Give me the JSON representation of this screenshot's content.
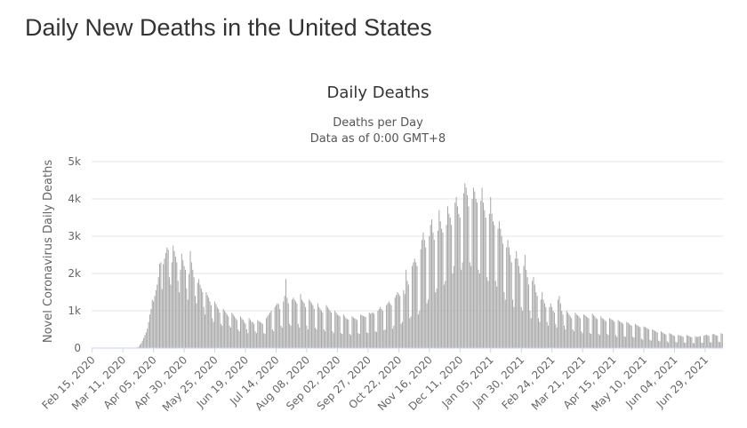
{
  "page": {
    "heading": "Daily New Deaths in the United States"
  },
  "chart_data": {
    "type": "bar",
    "title": "Daily Deaths",
    "subtitle_line1": "Deaths per Day",
    "subtitle_line2": "Data as of 0:00 GMT+8",
    "ylabel": "Novel Coronavirus Daily Deaths",
    "xlabel": "",
    "ylim": [
      0,
      5000
    ],
    "y_ticks": [
      0,
      1000,
      2000,
      3000,
      4000,
      5000
    ],
    "y_tick_labels": [
      "0",
      "1k",
      "2k",
      "3k",
      "4k",
      "5k"
    ],
    "x_tick_labels": [
      "Feb 15, 2020",
      "Mar 11, 2020",
      "Apr 05, 2020",
      "Apr 30, 2020",
      "May 25, 2020",
      "Jun 19, 2020",
      "Jul 14, 2020",
      "Aug 08, 2020",
      "Sep 02, 2020",
      "Sep 27, 2020",
      "Oct 22, 2020",
      "Nov 16, 2020",
      "Dec 11, 2020",
      "Jan 05, 2021",
      "Jan 30, 2021",
      "Feb 24, 2021",
      "Mar 21, 2021",
      "Apr 15, 2021",
      "May 10, 2021",
      "Jun 04, 2021",
      "Jun 29, 2021"
    ],
    "grid": true,
    "legend": "none",
    "bar_color": "#a6a6a6",
    "series": [
      {
        "start_date": "2020-02-15",
        "interval_days": 1,
        "values": [
          0,
          0,
          0,
          0,
          0,
          0,
          0,
          0,
          0,
          0,
          0,
          0,
          0,
          0,
          0,
          0,
          0,
          0,
          0,
          0,
          0,
          0,
          0,
          0,
          0,
          0,
          0,
          0,
          0,
          0,
          0,
          0,
          0,
          0,
          0,
          5,
          10,
          20,
          40,
          90,
          130,
          200,
          270,
          350,
          420,
          520,
          700,
          900,
          1050,
          1300,
          1250,
          1400,
          1550,
          1700,
          1900,
          2260,
          2300,
          1580,
          2250,
          2400,
          2550,
          2700,
          2640,
          1900,
          1700,
          2300,
          2750,
          2600,
          2450,
          2300,
          1800,
          1500,
          2100,
          2530,
          2360,
          2200,
          2100,
          1600,
          1300,
          1980,
          2600,
          2300,
          2100,
          1900,
          1400,
          1200,
          1750,
          1850,
          1700,
          1600,
          1500,
          1100,
          900,
          1500,
          1420,
          1350,
          1250,
          1150,
          800,
          700,
          1250,
          1180,
          1100,
          1050,
          950,
          650,
          600,
          1050,
          1000,
          950,
          900,
          850,
          600,
          550,
          950,
          900,
          850,
          800,
          750,
          500,
          450,
          850,
          800,
          760,
          700,
          650,
          500,
          400,
          800,
          750,
          700,
          700,
          650,
          450,
          400,
          750,
          720,
          700,
          680,
          650,
          400,
          380,
          800,
          850,
          900,
          950,
          1000,
          500,
          450,
          1100,
          1150,
          1200,
          1180,
          1050,
          600,
          550,
          1250,
          1400,
          1850,
          1350,
          1200,
          650,
          600,
          1300,
          1350,
          1300,
          1250,
          1200,
          650,
          550,
          1450,
          1300,
          1250,
          1200,
          1100,
          600,
          500,
          1300,
          1250,
          1200,
          1150,
          1050,
          550,
          500,
          1200,
          1100,
          1050,
          1000,
          950,
          500,
          450,
          1150,
          1100,
          1050,
          1000,
          950,
          450,
          400,
          1000,
          950,
          900,
          880,
          850,
          400,
          380,
          900,
          850,
          800,
          780,
          760,
          380,
          350,
          850,
          820,
          800,
          780,
          750,
          400,
          380,
          900,
          880,
          860,
          850,
          830,
          420,
          400,
          950,
          920,
          940,
          960,
          920,
          450,
          430,
          1000,
          1050,
          1100,
          1050,
          1000,
          480,
          500,
          1150,
          1200,
          1250,
          1200,
          1150,
          520,
          600,
          1350,
          1420,
          1500,
          1450,
          1400,
          650,
          700,
          1550,
          1450,
          2100,
          1800,
          1700,
          800,
          850,
          2200,
          2300,
          2400,
          2300,
          2200,
          900,
          1000,
          2650,
          2900,
          3100,
          2900,
          2700,
          1200,
          1300,
          3000,
          3300,
          3450,
          3100,
          2900,
          1500,
          1600,
          3150,
          3700,
          3400,
          3200,
          3100,
          1700,
          1800,
          3300,
          3800,
          3600,
          3500,
          3300,
          2000,
          2200,
          3900,
          4050,
          3800,
          3600,
          3500,
          2100,
          2300,
          4150,
          4420,
          4300,
          4100,
          3800,
          2300,
          2200,
          4000,
          4300,
          4200,
          4000,
          3900,
          2100,
          2000,
          3950,
          4300,
          3900,
          3700,
          3500,
          1900,
          1800,
          3600,
          4050,
          3600,
          3400,
          3300,
          1800,
          1650,
          3200,
          3400,
          3200,
          3000,
          2800,
          1500,
          1300,
          2700,
          2900,
          2700,
          2500,
          2300,
          1300,
          1100,
          2400,
          2600,
          2400,
          2200,
          2000,
          1100,
          1000,
          2200,
          2500,
          2100,
          1900,
          1700,
          1000,
          800,
          1800,
          1900,
          1700,
          1500,
          1400,
          800,
          700,
          1300,
          1500,
          1300,
          1200,
          1100,
          700,
          600,
          1100,
          1200,
          1100,
          1000,
          950,
          650,
          550,
          1300,
          1400,
          1200,
          1000,
          900,
          600,
          500,
          1000,
          950,
          900,
          850,
          800,
          500,
          450,
          950,
          900,
          880,
          850,
          800,
          450,
          400,
          900,
          880,
          850,
          820,
          800,
          400,
          380,
          920,
          880,
          850,
          800,
          780,
          380,
          350,
          850,
          800,
          780,
          750,
          720,
          380,
          350,
          800,
          780,
          760,
          740,
          700,
          350,
          300,
          750,
          720,
          700,
          680,
          650,
          320,
          300,
          700,
          680,
          650,
          620,
          600,
          300,
          280,
          650,
          620,
          600,
          580,
          560,
          250,
          220,
          580,
          560,
          550,
          520,
          500,
          220,
          200,
          500,
          480,
          460,
          440,
          420,
          200,
          180,
          450,
          420,
          400,
          380,
          360,
          180,
          150,
          400,
          380,
          360,
          340,
          320,
          170,
          150,
          350,
          340,
          330,
          320,
          300,
          150,
          140,
          350,
          330,
          320,
          300,
          290,
          140,
          130,
          320,
          300,
          300,
          310,
          320,
          150,
          140,
          330,
          350,
          360,
          340,
          330,
          160,
          150,
          370,
          380,
          360,
          340,
          330,
          170,
          160,
          400,
          380
        ]
      }
    ]
  }
}
